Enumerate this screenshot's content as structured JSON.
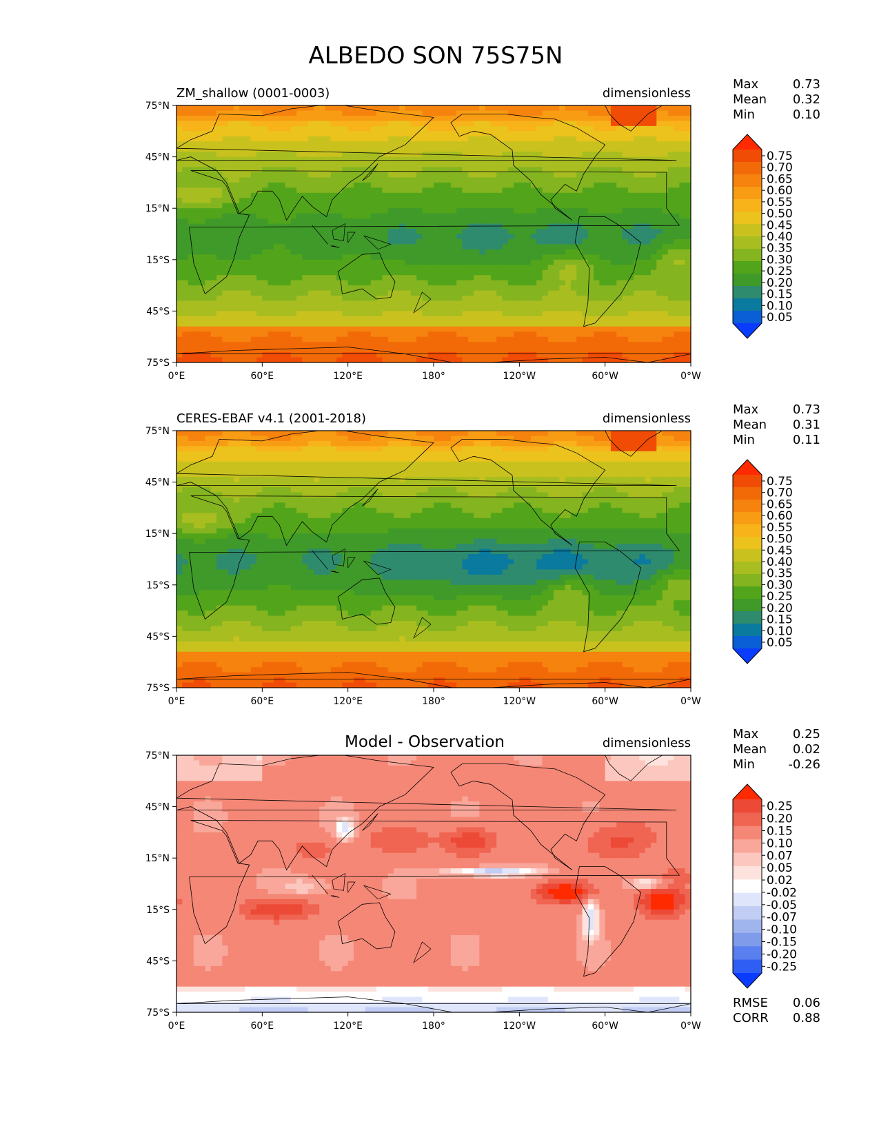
{
  "figure": {
    "title": "ALBEDO SON 75S75N"
  },
  "axes": {
    "lat_ticks": [
      "75°N",
      "45°N",
      "15°N",
      "15°S",
      "45°S",
      "75°S"
    ],
    "lon_ticks": [
      "0°E",
      "60°E",
      "120°E",
      "180°",
      "120°W",
      "60°W",
      "0°W"
    ],
    "lat_range": [
      -75,
      75
    ],
    "lon_range": [
      0,
      360
    ]
  },
  "colors": {
    "albedo_levels": [
      "#0a3cff",
      "#0b5fd6",
      "#0a7a9e",
      "#2e8b6e",
      "#3f9a2a",
      "#52a51a",
      "#84b41f",
      "#a8bd20",
      "#c9c21e",
      "#ecc21c",
      "#f8b31a",
      "#f89c14",
      "#f6830e",
      "#f26a08",
      "#f04c05",
      "#ff2a00"
    ],
    "diff_levels": [
      "#0a3cff",
      "#2f5ef5",
      "#5a7fee",
      "#7f9be9",
      "#a0b4ee",
      "#c1cdf4",
      "#dfe5fa",
      "#ffffff",
      "#fde2dd",
      "#fcc7be",
      "#f9a79a",
      "#f58776",
      "#f06452",
      "#ec4a36",
      "#ff2a00"
    ]
  },
  "chart_data": [
    {
      "type": "heatmap",
      "title": "ZM_shallow (0001-0003)",
      "units": "dimensionless",
      "stats": {
        "max_label": "Max",
        "max": "0.73",
        "mean_label": "Mean",
        "mean": "0.32",
        "min_label": "Min",
        "min": "0.10"
      },
      "colorbar_ticks": [
        "0.75",
        "0.70",
        "0.65",
        "0.60",
        "0.55",
        "0.50",
        "0.45",
        "0.40",
        "0.35",
        "0.30",
        "0.25",
        "0.20",
        "0.15",
        "0.10",
        "0.05"
      ],
      "cmap": "albedo"
    },
    {
      "type": "heatmap",
      "title": "CERES-EBAF v4.1 (2001-2018)",
      "units": "dimensionless",
      "stats": {
        "max_label": "Max",
        "max": "0.73",
        "mean_label": "Mean",
        "mean": "0.31",
        "min_label": "Min",
        "min": "0.11"
      },
      "colorbar_ticks": [
        "0.75",
        "0.70",
        "0.65",
        "0.60",
        "0.55",
        "0.50",
        "0.45",
        "0.40",
        "0.35",
        "0.30",
        "0.25",
        "0.20",
        "0.15",
        "0.10",
        "0.05"
      ],
      "cmap": "albedo"
    },
    {
      "type": "heatmap",
      "title": "Model - Observation",
      "units": "dimensionless",
      "stats": {
        "max_label": "Max",
        "max": "0.25",
        "mean_label": "Mean",
        "mean": "0.02",
        "min_label": "Min",
        "min": "-0.26"
      },
      "colorbar_ticks": [
        "0.25",
        "0.20",
        "0.15",
        "0.10",
        "0.07",
        "0.05",
        "0.02",
        "-0.02",
        "-0.05",
        "-0.07",
        "-0.10",
        "-0.15",
        "-0.20",
        "-0.25"
      ],
      "cmap": "diff",
      "metrics": {
        "rmse_label": "RMSE",
        "rmse": "0.06",
        "corr_label": "CORR",
        "corr": "0.88"
      }
    }
  ]
}
